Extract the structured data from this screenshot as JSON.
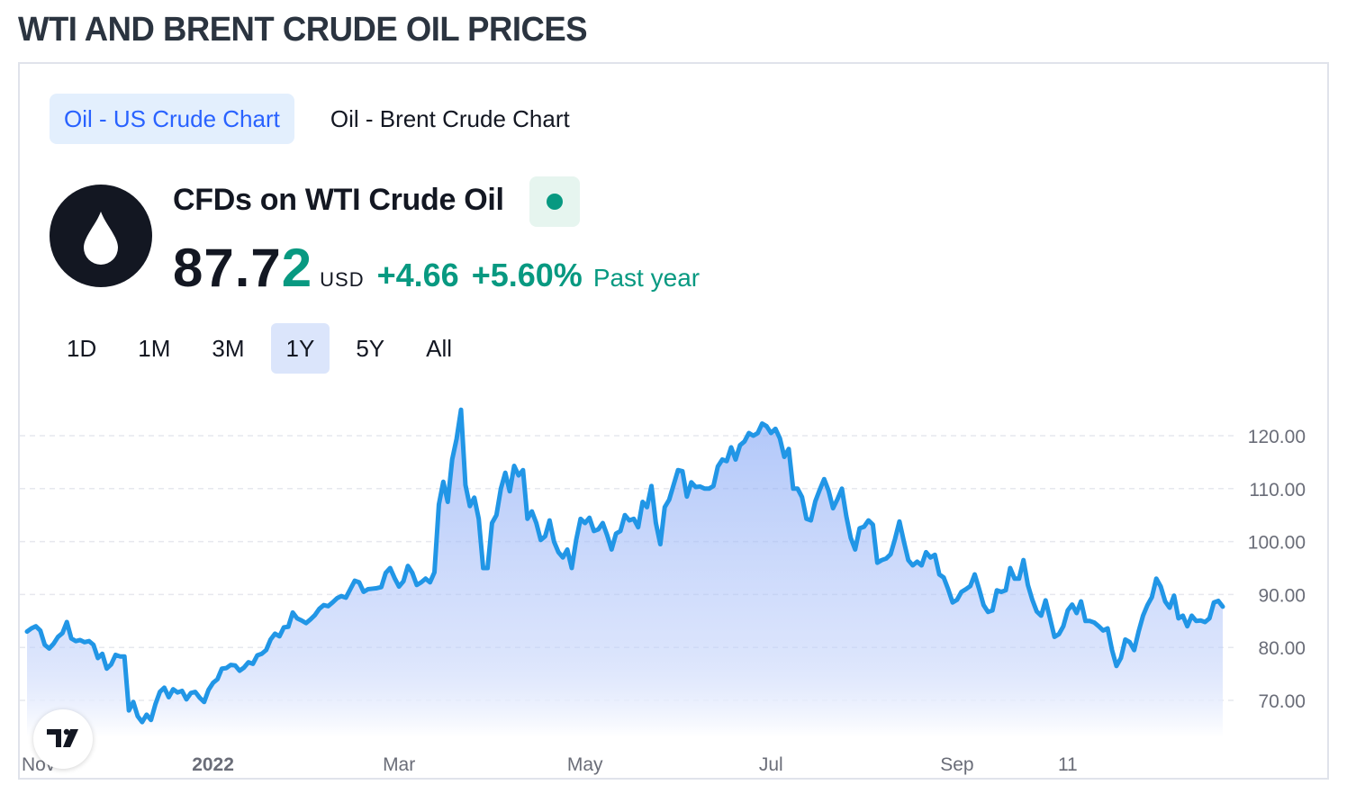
{
  "page_title": "WTI AND BRENT CRUDE OIL PRICES",
  "tabs": [
    {
      "label": "Oil - US Crude Chart",
      "active": true
    },
    {
      "label": "Oil - Brent Crude Chart",
      "active": false
    }
  ],
  "symbol": {
    "name": "CFDs on WTI Crude Oil",
    "logo_icon": "oil-drop-icon",
    "market_status_icon": "market-open-dot-icon",
    "price_main": "87.7",
    "price_last_digit": "2",
    "currency": "USD",
    "change": "+4.66",
    "change_pct": "+5.60%",
    "period": "Past year"
  },
  "ranges": [
    {
      "label": "1D",
      "active": false
    },
    {
      "label": "1M",
      "active": false
    },
    {
      "label": "3M",
      "active": false
    },
    {
      "label": "1Y",
      "active": true
    },
    {
      "label": "5Y",
      "active": false
    },
    {
      "label": "All",
      "active": false
    }
  ],
  "colors": {
    "accent": "#2962ff",
    "line": "#2196e6",
    "positive": "#089981",
    "text": "#131722",
    "axis_text": "#6a6d78"
  },
  "chart_data": {
    "type": "area",
    "title": "",
    "xlabel": "",
    "ylabel": "",
    "ylim": [
      62,
      127
    ],
    "y_ticks": [
      "120.00",
      "110.00",
      "100.00",
      "90.00",
      "80.00",
      "70.00"
    ],
    "x_ticks": [
      {
        "label": "Nov",
        "bold": false,
        "index": 0
      },
      {
        "label": "2022",
        "bold": true,
        "index": 42
      },
      {
        "label": "Mar",
        "bold": false,
        "index": 84
      },
      {
        "label": "May",
        "bold": false,
        "index": 126
      },
      {
        "label": "Jul",
        "bold": false,
        "index": 168
      },
      {
        "label": "Sep",
        "bold": false,
        "index": 210
      },
      {
        "label": "11",
        "bold": false,
        "index": 235
      }
    ],
    "grid": true,
    "legend": "none",
    "series": [
      {
        "values": [
          83.0,
          83.6,
          84.0,
          83.2,
          80.5,
          79.8,
          80.7,
          82.0,
          82.7,
          84.8,
          81.7,
          81.2,
          81.4,
          81.0,
          81.2,
          80.5,
          78.0,
          78.8,
          76.0,
          76.8,
          78.6,
          78.3,
          78.3,
          68.1,
          69.7,
          67.0,
          65.9,
          67.3,
          66.3,
          69.3,
          71.6,
          72.4,
          70.6,
          72.1,
          71.5,
          71.8,
          70.2,
          71.4,
          71.6,
          70.5,
          69.7,
          72.0,
          73.3,
          74.0,
          76.0,
          76.1,
          76.7,
          76.6,
          75.6,
          76.2,
          77.2,
          76.9,
          78.5,
          78.8,
          79.5,
          81.5,
          82.6,
          82.1,
          83.8,
          83.9,
          86.6,
          85.5,
          85.1,
          84.6,
          85.3,
          86.1,
          87.3,
          88.0,
          87.8,
          88.5,
          89.3,
          89.7,
          89.4,
          91.0,
          92.6,
          92.3,
          90.5,
          91.0,
          91.1,
          91.2,
          91.4,
          94.1,
          95.0,
          93.1,
          91.5,
          92.5,
          95.4,
          94.1,
          91.8,
          92.3,
          93.0,
          92.3,
          94.2,
          107.0,
          111.3,
          107.5,
          115.5,
          119.4,
          124.9,
          110.7,
          106.7,
          108.3,
          104.3,
          95.0,
          95.0,
          103.5,
          105.0,
          110.0,
          113.0,
          109.5,
          114.3,
          112.5,
          113.5,
          104.3,
          105.7,
          103.5,
          100.3,
          101.0,
          104.0,
          100.0,
          98.0,
          97.0,
          98.5,
          95.0,
          100.3,
          104.3,
          103.5,
          104.5,
          102.0,
          102.3,
          103.5,
          101.2,
          98.5,
          101.5,
          102.0,
          105.0,
          104.0,
          104.3,
          102.7,
          107.5,
          106.5,
          110.5,
          103.5,
          99.5,
          106.5,
          107.9,
          110.7,
          113.5,
          113.3,
          108.5,
          111.2,
          110.3,
          110.4,
          110.0,
          110.0,
          110.5,
          114.2,
          115.5,
          115.2,
          117.8,
          115.5,
          118.2,
          118.9,
          120.5,
          120.0,
          120.5,
          122.3,
          121.8,
          120.5,
          121.3,
          119.5,
          116.0,
          117.5,
          110.0,
          110.0,
          108.4,
          104.3,
          104.0,
          107.6,
          109.8,
          111.8,
          109.6,
          106.3,
          108.0,
          110.0,
          104.8,
          100.7,
          98.5,
          102.5,
          102.8,
          104.0,
          103.2,
          96.0,
          96.5,
          96.8,
          97.6,
          100.5,
          103.8,
          100.0,
          96.5,
          95.5,
          96.2,
          95.5,
          98.0,
          97.0,
          97.5,
          93.8,
          93.2,
          91.0,
          88.5,
          89.0,
          90.5,
          91.0,
          91.6,
          93.8,
          91.0,
          88.0,
          86.7,
          87.0,
          90.8,
          90.5,
          90.8,
          95.0,
          93.0,
          93.0,
          96.5,
          91.8,
          89.0,
          86.8,
          86.0,
          88.9,
          85.5,
          82.0,
          82.5,
          84.0,
          87.0,
          88.1,
          86.5,
          88.7,
          85.0,
          85.0,
          84.7,
          84.0,
          83.2,
          83.6,
          79.5,
          76.5,
          78.0,
          81.5,
          81.0,
          79.5,
          83.0,
          86.0,
          88.0,
          89.5,
          93.0,
          91.5,
          88.7,
          87.5,
          89.8,
          85.5,
          86.0,
          84.0,
          86.0,
          85.0,
          85.1,
          84.8,
          85.5,
          88.5,
          88.8,
          87.7
        ]
      }
    ]
  }
}
